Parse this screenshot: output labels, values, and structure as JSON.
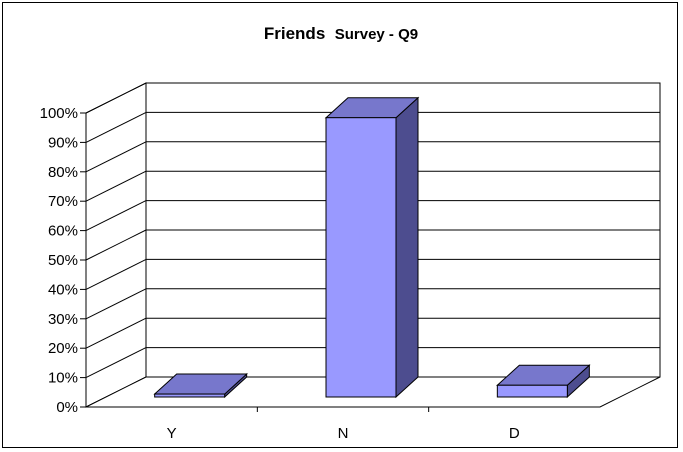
{
  "chart_data": {
    "type": "bar",
    "title_parts": [
      "Friends",
      "Survey - Q9"
    ],
    "categories": [
      "Y",
      "N",
      "D"
    ],
    "values": [
      1,
      95,
      4
    ],
    "ylim": [
      0,
      100
    ],
    "yticks": [
      0,
      10,
      20,
      30,
      40,
      50,
      60,
      70,
      80,
      90,
      100
    ],
    "ytick_labels": [
      "0%",
      "10%",
      "20%",
      "30%",
      "40%",
      "50%",
      "60%",
      "70%",
      "80%",
      "90%",
      "100%"
    ],
    "grid": true,
    "three_d": true,
    "legend": "none",
    "colors": {
      "bar_front": "#9999ff",
      "bar_top": "#7777cc",
      "bar_side": "#4d4d8f",
      "wall": "#ffffff",
      "gridline": "#000000",
      "frame": "#000000"
    }
  }
}
